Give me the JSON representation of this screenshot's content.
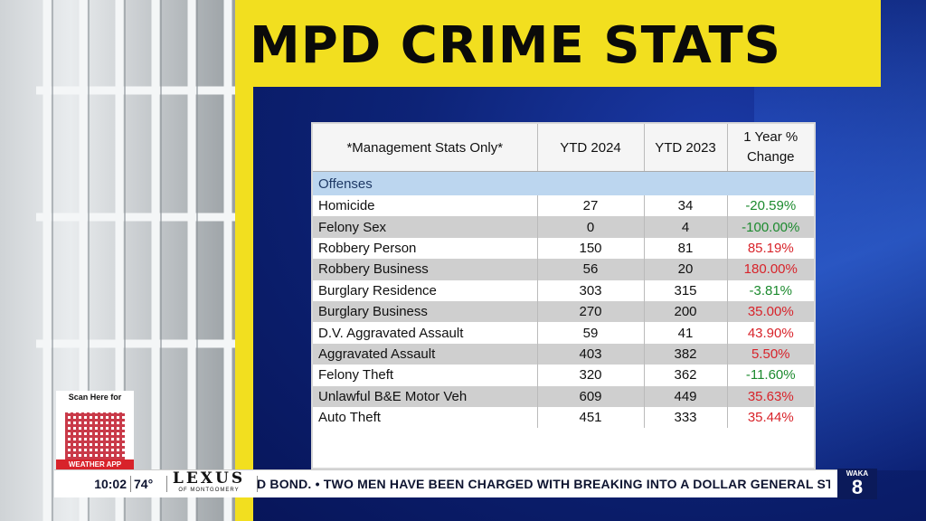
{
  "title": "MPD CRIME STATS",
  "table": {
    "headers": [
      "*Management Stats Only*",
      "YTD   2024",
      "YTD   2023",
      "1 Year %",
      "Change"
    ],
    "section": "Offenses",
    "rows": [
      {
        "offense": "Homicide",
        "ytd2024": "27",
        "ytd2023": "34",
        "change": "-20.59%",
        "dir": "neg"
      },
      {
        "offense": "Felony Sex",
        "ytd2024": "0",
        "ytd2023": "4",
        "change": "-100.00%",
        "dir": "neg"
      },
      {
        "offense": "Robbery Person",
        "ytd2024": "150",
        "ytd2023": "81",
        "change": "85.19%",
        "dir": "pos"
      },
      {
        "offense": "Robbery Business",
        "ytd2024": "56",
        "ytd2023": "20",
        "change": "180.00%",
        "dir": "pos"
      },
      {
        "offense": "Burglary Residence",
        "ytd2024": "303",
        "ytd2023": "315",
        "change": "-3.81%",
        "dir": "neg"
      },
      {
        "offense": "Burglary Business",
        "ytd2024": "270",
        "ytd2023": "200",
        "change": "35.00%",
        "dir": "pos"
      },
      {
        "offense": "D.V. Aggravated Assault",
        "ytd2024": "59",
        "ytd2023": "41",
        "change": "43.90%",
        "dir": "pos"
      },
      {
        "offense": "Aggravated Assault",
        "ytd2024": "403",
        "ytd2023": "382",
        "change": "5.50%",
        "dir": "pos"
      },
      {
        "offense": "Felony Theft",
        "ytd2024": "320",
        "ytd2023": "362",
        "change": "-11.60%",
        "dir": "neg"
      },
      {
        "offense": "Unlawful B&E Motor Veh",
        "ytd2024": "609",
        "ytd2023": "449",
        "change": "35.63%",
        "dir": "pos"
      },
      {
        "offense": "Auto Theft",
        "ytd2024": "451",
        "ytd2023": "333",
        "change": "35.44%",
        "dir": "pos"
      }
    ]
  },
  "qr": {
    "top": "Scan Here for",
    "bottom": "WEATHER APP"
  },
  "ticker": {
    "time": "10:02",
    "temp": "74°",
    "sponsor": "LEXUS",
    "sponsor_sub": "OF MONTGOMERY",
    "headline": "D BOND.  •  TWO MEN HAVE BEEN CHARGED WITH BREAKING INTO A DOLLAR GENERAL STORE",
    "logo_text": "WAKA",
    "logo_num": "8"
  },
  "colors": {
    "title_bar": "#f2df1f",
    "negative_change": "#1c8a2e",
    "positive_change": "#d8232a",
    "section_header": "#bcd6ef"
  }
}
